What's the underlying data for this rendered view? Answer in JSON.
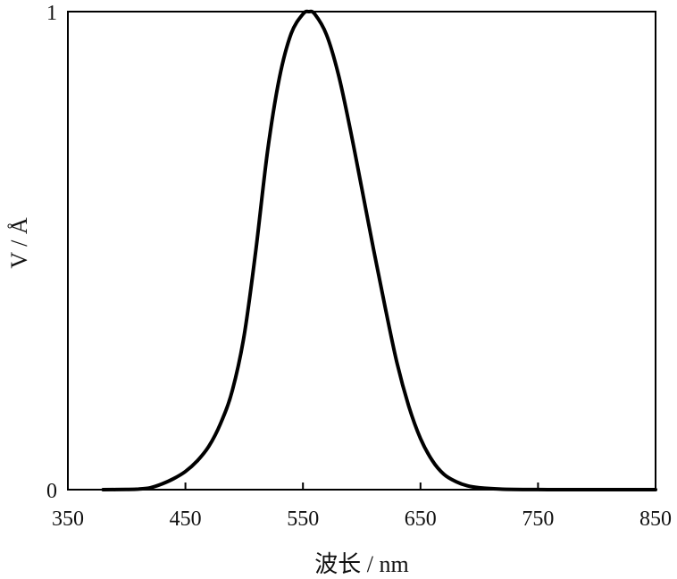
{
  "chart_data": {
    "type": "line",
    "title": "",
    "xlabel": "波长 / nm",
    "ylabel": "V / Å",
    "xlim": [
      350,
      850
    ],
    "ylim": [
      0,
      1
    ],
    "x_ticks": [
      350,
      450,
      550,
      650,
      750,
      850
    ],
    "x_tick_labels": [
      "350",
      "450",
      "550",
      "650",
      "750",
      "850"
    ],
    "y_tick_labels": [
      "0",
      "1"
    ],
    "grid": false,
    "legend": "none",
    "line_color": "#000000",
    "series": [
      {
        "x": [
          380,
          400,
          410,
          420,
          430,
          440,
          450,
          460,
          470,
          480,
          490,
          500,
          510,
          520,
          530,
          540,
          550,
          555,
          560,
          570,
          580,
          590,
          600,
          610,
          620,
          630,
          640,
          650,
          660,
          670,
          680,
          690,
          700,
          720,
          750,
          780,
          850
        ],
        "values": [
          0.0,
          0.0004,
          0.0012,
          0.004,
          0.012,
          0.023,
          0.038,
          0.06,
          0.091,
          0.139,
          0.208,
          0.323,
          0.503,
          0.71,
          0.862,
          0.954,
          0.995,
          1.0,
          0.995,
          0.952,
          0.87,
          0.757,
          0.631,
          0.503,
          0.381,
          0.265,
          0.175,
          0.107,
          0.061,
          0.032,
          0.017,
          0.008,
          0.004,
          0.001,
          0.0001,
          0.0,
          0.0
        ]
      }
    ]
  }
}
